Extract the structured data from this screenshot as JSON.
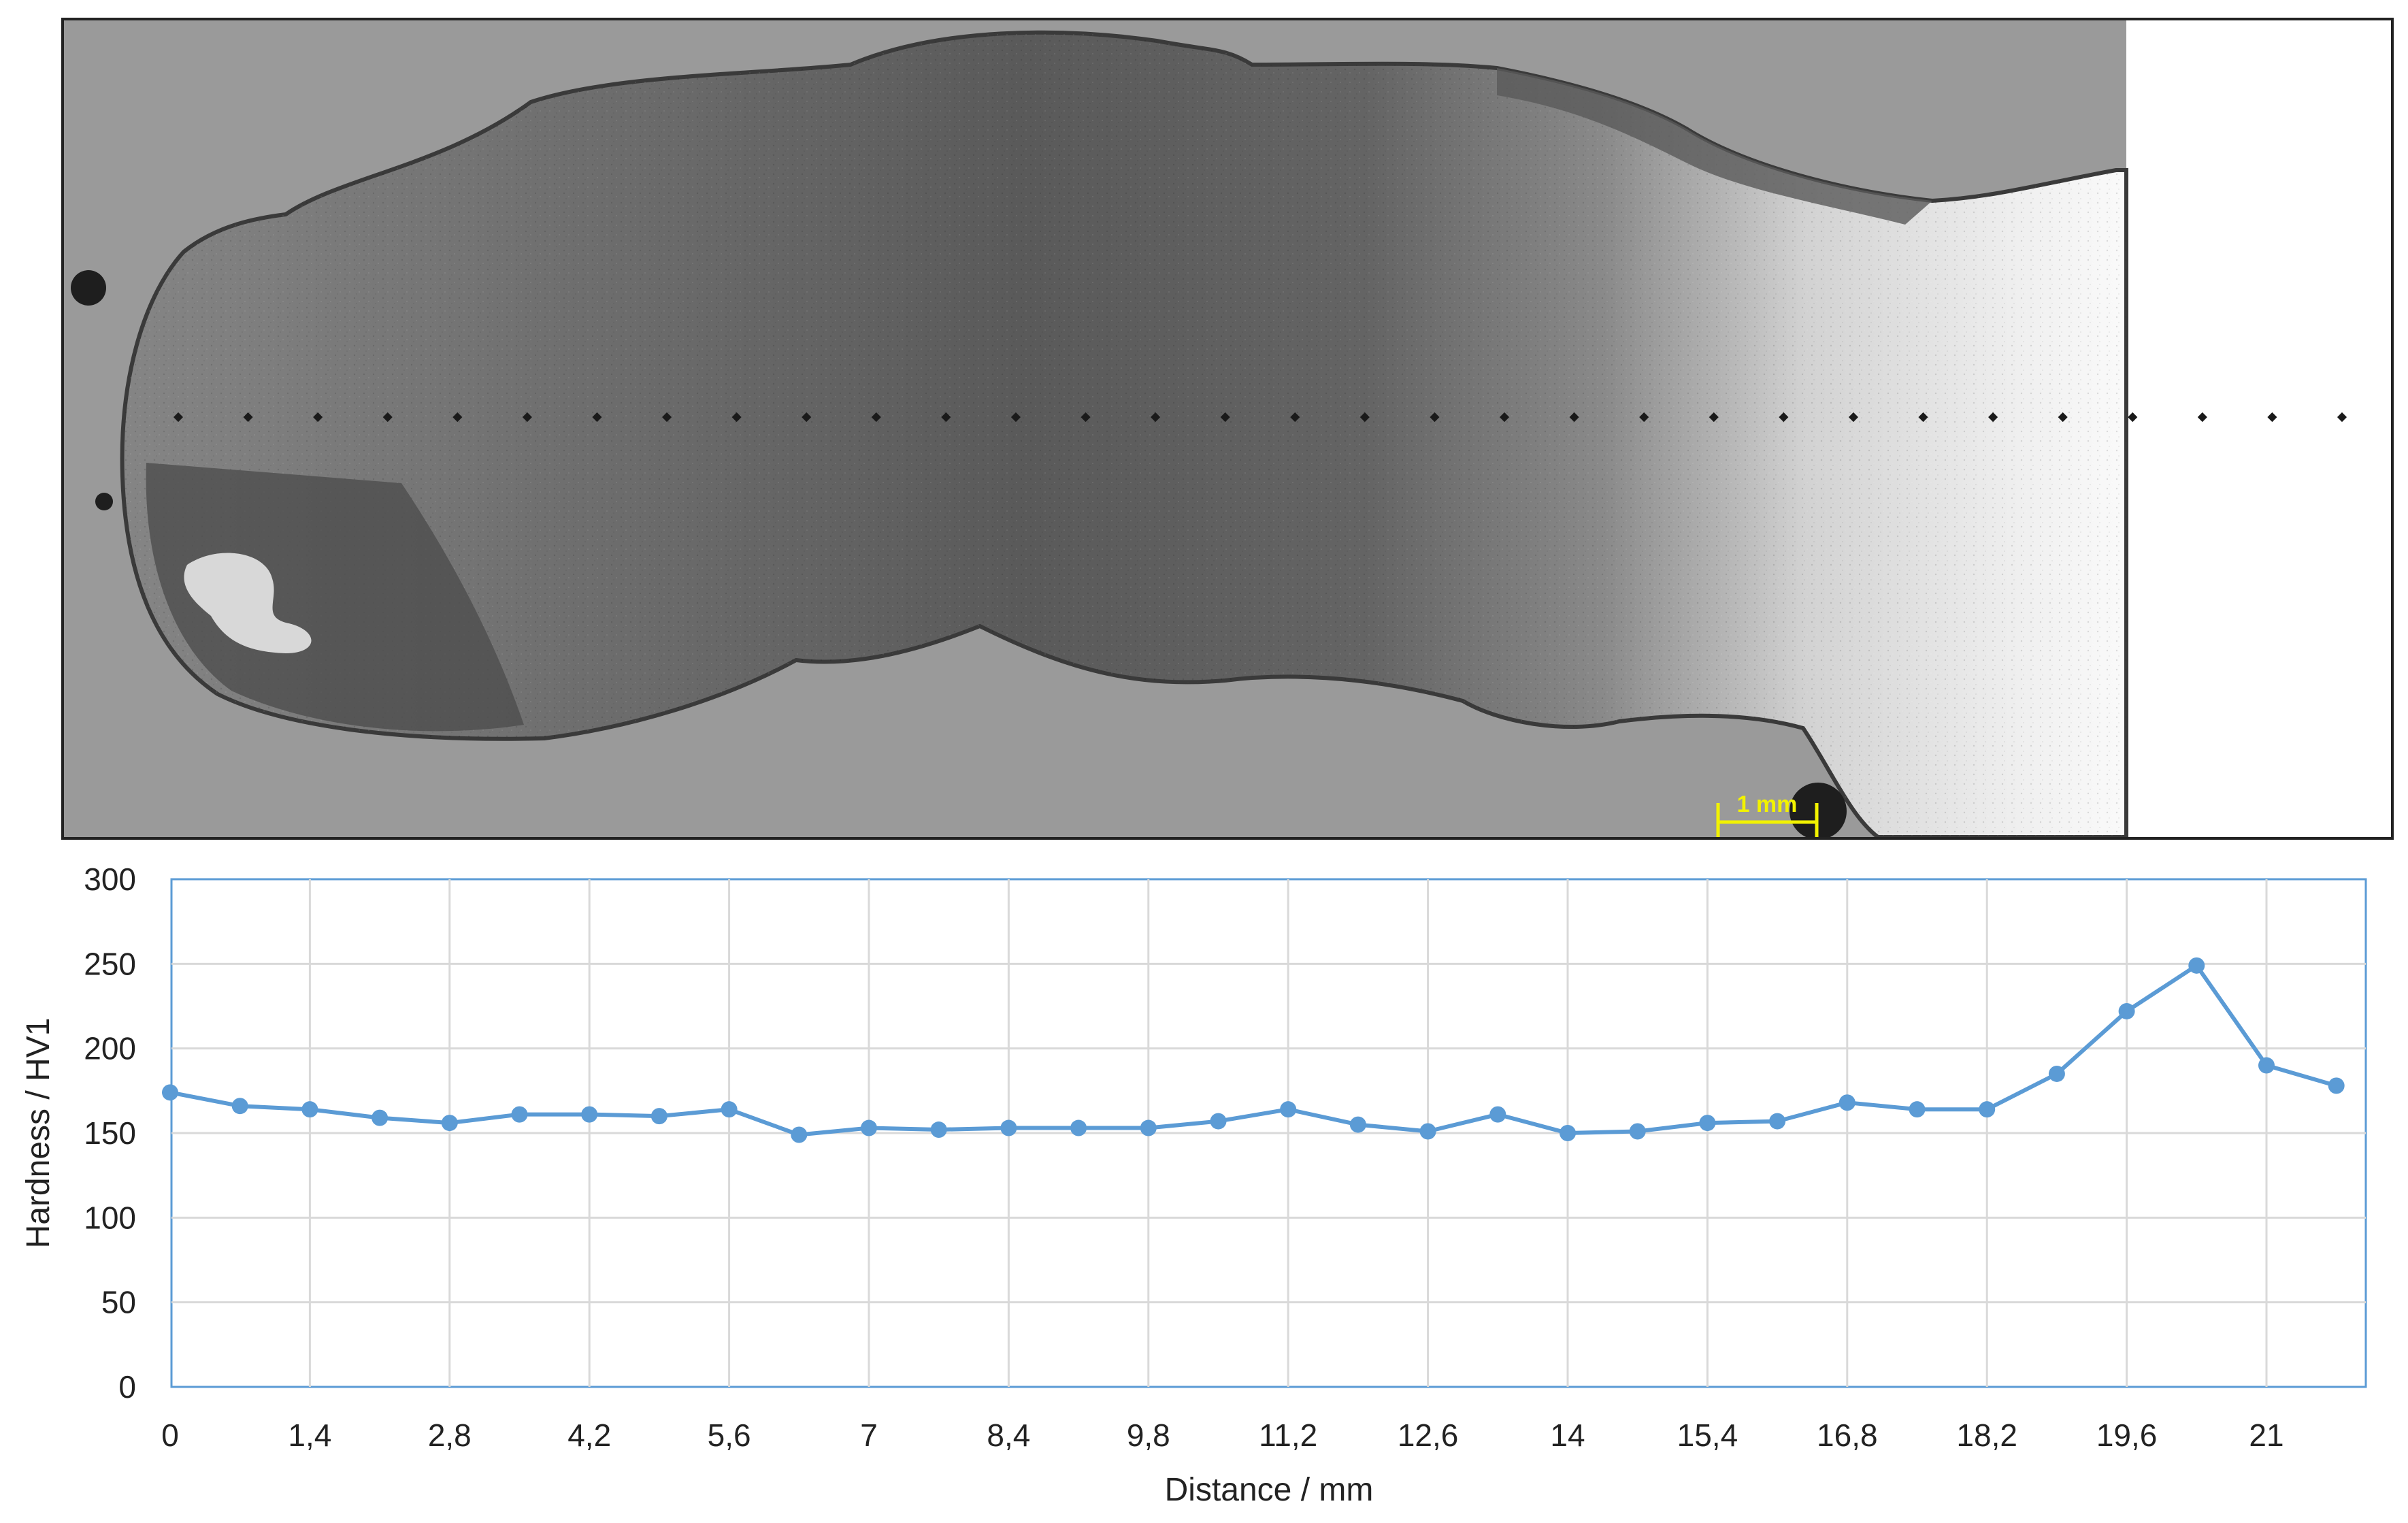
{
  "micrograph": {
    "scale_bar_label": "1 mm",
    "indent_count": 32
  },
  "chart_data": {
    "type": "line",
    "title": "",
    "xlabel": "Distance / mm",
    "ylabel": "Hardness / HV1",
    "xlim": [
      0,
      22.4
    ],
    "ylim": [
      0,
      300
    ],
    "xticks": [
      0,
      1.4,
      2.8,
      4.2,
      5.6,
      7,
      8.4,
      9.8,
      11.2,
      12.6,
      14,
      15.4,
      16.8,
      18.2,
      19.6,
      21
    ],
    "xtick_labels": [
      "0",
      "1,4",
      "2,8",
      "4,2",
      "5,6",
      "7",
      "8,4",
      "9,8",
      "11,2",
      "12,6",
      "14",
      "15,4",
      "16,8",
      "18,2",
      "19,6",
      "21"
    ],
    "yticks": [
      0,
      50,
      100,
      150,
      200,
      250,
      300
    ],
    "ytick_labels": [
      "0",
      "50",
      "100",
      "150",
      "200",
      "250",
      "300"
    ],
    "grid": true,
    "line_color": "#5b9bd5",
    "series": [
      {
        "x": [
          0,
          0.7,
          1.4,
          2.1,
          2.8,
          3.5,
          4.2,
          4.9,
          5.6,
          6.3,
          7,
          7.7,
          8.4,
          9.1,
          9.8,
          10.5,
          11.2,
          11.9,
          12.6,
          13.3,
          14,
          14.7,
          15.4,
          16.1,
          16.8,
          17.5,
          18.2,
          18.9,
          19.6,
          20.3,
          21,
          21.7
        ],
        "values": [
          174,
          166,
          164,
          159,
          156,
          161,
          161,
          160,
          164,
          149,
          153,
          152,
          153,
          153,
          153,
          157,
          164,
          155,
          151,
          161,
          150,
          151,
          156,
          157,
          168,
          164,
          164,
          185,
          222,
          249,
          190,
          178
        ]
      }
    ]
  }
}
